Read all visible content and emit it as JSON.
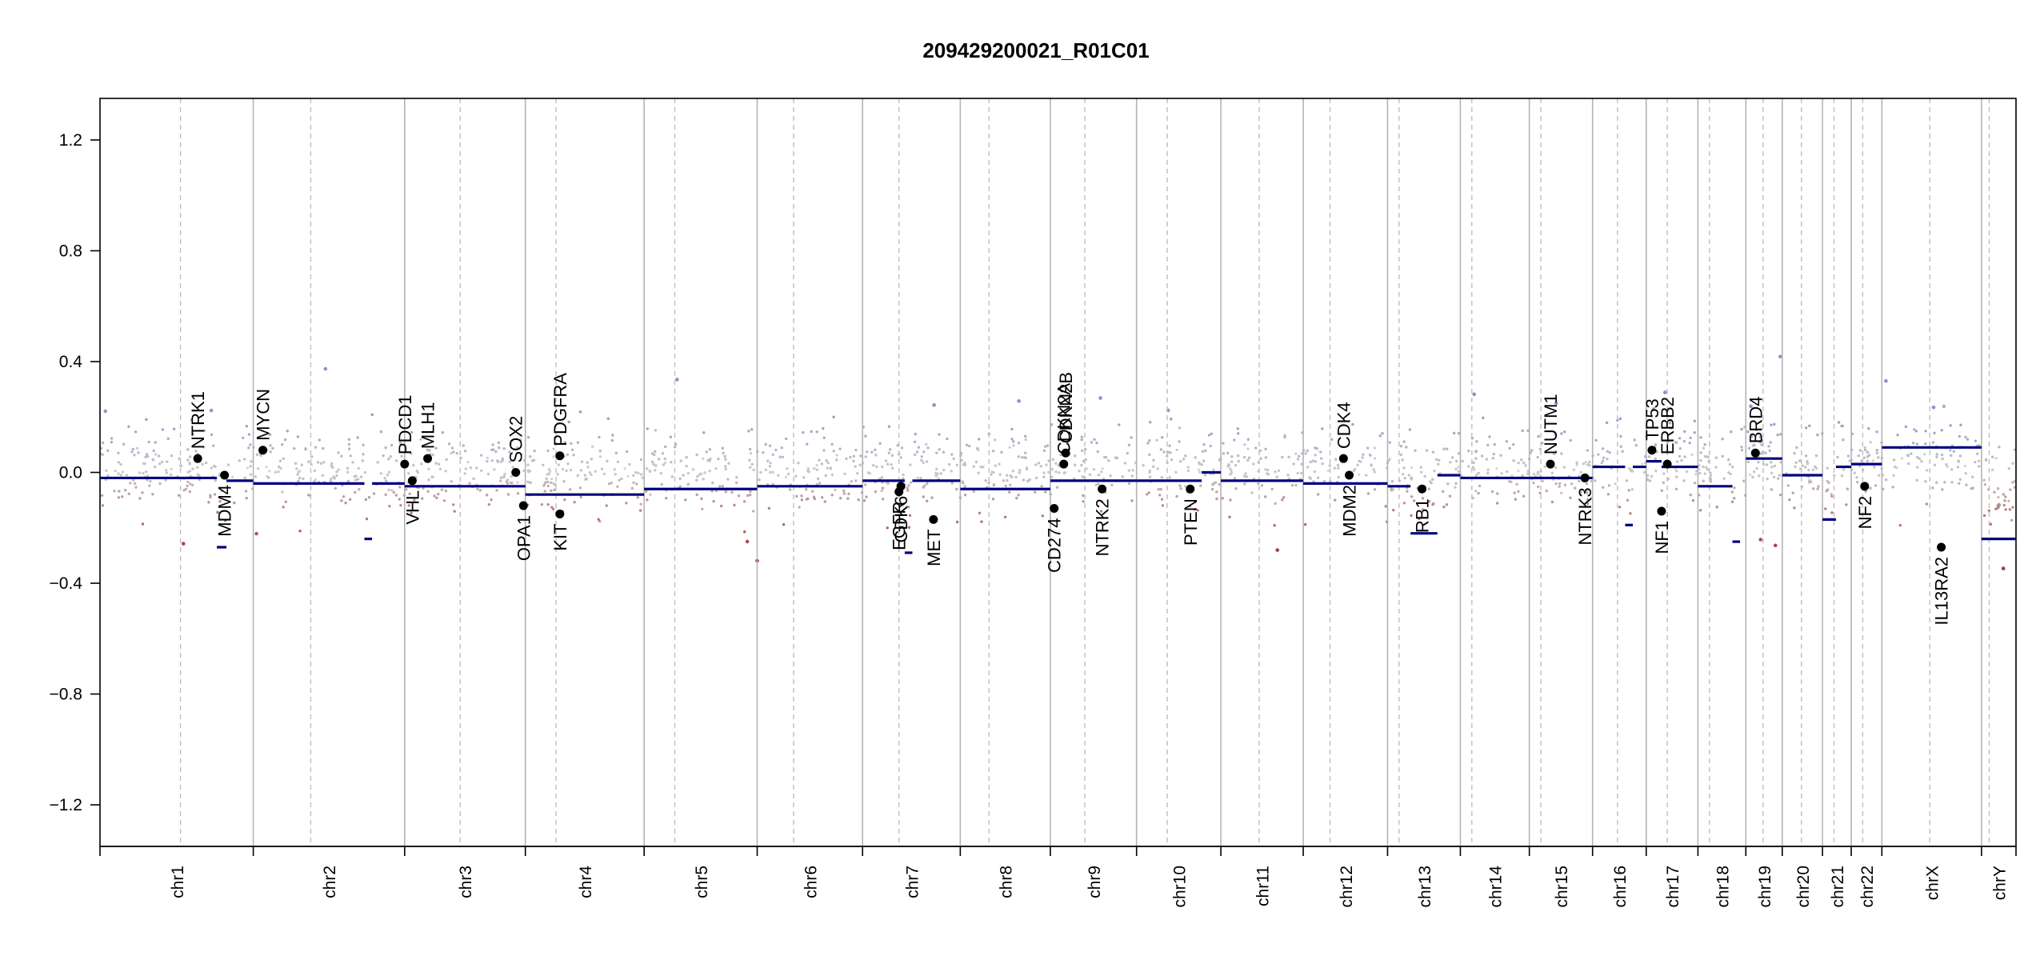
{
  "chart_data": {
    "type": "scatter",
    "title": "209429200021_R01C01",
    "xlabel": "",
    "ylabel": "",
    "ylim": [
      -1.35,
      1.35
    ],
    "yticks": [
      -1.2,
      -0.8,
      -0.4,
      0.0,
      0.4,
      0.8,
      1.2
    ],
    "ytick_labels": [
      "−1.2",
      "−0.8",
      "−0.4",
      "0.0",
      "0.4",
      "0.8",
      "1.2"
    ],
    "grid": false,
    "x_unit": "genome position (relative scale 0–1)",
    "chromosomes": [
      {
        "name": "chr1",
        "start": 0.0,
        "end": 0.08,
        "cen": 0.042
      },
      {
        "name": "chr2",
        "start": 0.08,
        "end": 0.159,
        "cen": 0.11
      },
      {
        "name": "chr3",
        "start": 0.159,
        "end": 0.222,
        "cen": 0.188
      },
      {
        "name": "chr4",
        "start": 0.222,
        "end": 0.284,
        "cen": 0.238
      },
      {
        "name": "chr5",
        "start": 0.284,
        "end": 0.343,
        "cen": 0.3
      },
      {
        "name": "chr6",
        "start": 0.343,
        "end": 0.398,
        "cen": 0.362
      },
      {
        "name": "chr7",
        "start": 0.398,
        "end": 0.449,
        "cen": 0.417
      },
      {
        "name": "chr8",
        "start": 0.449,
        "end": 0.496,
        "cen": 0.464
      },
      {
        "name": "chr9",
        "start": 0.496,
        "end": 0.541,
        "cen": 0.514
      },
      {
        "name": "chr10",
        "start": 0.541,
        "end": 0.585,
        "cen": 0.557
      },
      {
        "name": "chr11",
        "start": 0.585,
        "end": 0.628,
        "cen": 0.605
      },
      {
        "name": "chr12",
        "start": 0.628,
        "end": 0.672,
        "cen": 0.642
      },
      {
        "name": "chr13",
        "start": 0.672,
        "end": 0.71,
        "cen": 0.678
      },
      {
        "name": "chr14",
        "start": 0.71,
        "end": 0.746,
        "cen": 0.716
      },
      {
        "name": "chr15",
        "start": 0.746,
        "end": 0.779,
        "cen": 0.752
      },
      {
        "name": "chr16",
        "start": 0.779,
        "end": 0.807,
        "cen": 0.792
      },
      {
        "name": "chr17",
        "start": 0.807,
        "end": 0.834,
        "cen": 0.818
      },
      {
        "name": "chr18",
        "start": 0.834,
        "end": 0.859,
        "cen": 0.84
      },
      {
        "name": "chr19",
        "start": 0.859,
        "end": 0.878,
        "cen": 0.868
      },
      {
        "name": "chr20",
        "start": 0.878,
        "end": 0.899,
        "cen": 0.888
      },
      {
        "name": "chr21",
        "start": 0.899,
        "end": 0.914,
        "cen": 0.905
      },
      {
        "name": "chr22",
        "start": 0.914,
        "end": 0.93,
        "cen": 0.92
      },
      {
        "name": "chrX",
        "start": 0.93,
        "end": 0.982,
        "cen": 0.955
      },
      {
        "name": "chrY",
        "start": 0.982,
        "end": 1.0,
        "cen": 0.986
      }
    ],
    "segments": [
      {
        "x0": 0.0,
        "x1": 0.061,
        "y": -0.02
      },
      {
        "x0": 0.061,
        "x1": 0.066,
        "y": -0.27
      },
      {
        "x0": 0.066,
        "x1": 0.08,
        "y": -0.03
      },
      {
        "x0": 0.08,
        "x1": 0.138,
        "y": -0.04
      },
      {
        "x0": 0.138,
        "x1": 0.142,
        "y": -0.24
      },
      {
        "x0": 0.142,
        "x1": 0.159,
        "y": -0.04
      },
      {
        "x0": 0.159,
        "x1": 0.222,
        "y": -0.05
      },
      {
        "x0": 0.222,
        "x1": 0.284,
        "y": -0.08
      },
      {
        "x0": 0.284,
        "x1": 0.343,
        "y": -0.06
      },
      {
        "x0": 0.343,
        "x1": 0.398,
        "y": -0.05
      },
      {
        "x0": 0.398,
        "x1": 0.42,
        "y": -0.03
      },
      {
        "x0": 0.42,
        "x1": 0.424,
        "y": -0.29
      },
      {
        "x0": 0.424,
        "x1": 0.449,
        "y": -0.03
      },
      {
        "x0": 0.449,
        "x1": 0.496,
        "y": -0.06
      },
      {
        "x0": 0.496,
        "x1": 0.541,
        "y": -0.03
      },
      {
        "x0": 0.541,
        "x1": 0.575,
        "y": -0.03
      },
      {
        "x0": 0.575,
        "x1": 0.585,
        "y": 0.0
      },
      {
        "x0": 0.585,
        "x1": 0.628,
        "y": -0.03
      },
      {
        "x0": 0.628,
        "x1": 0.672,
        "y": -0.04
      },
      {
        "x0": 0.672,
        "x1": 0.684,
        "y": -0.05
      },
      {
        "x0": 0.684,
        "x1": 0.698,
        "y": -0.22
      },
      {
        "x0": 0.698,
        "x1": 0.71,
        "y": -0.01
      },
      {
        "x0": 0.71,
        "x1": 0.746,
        "y": -0.02
      },
      {
        "x0": 0.746,
        "x1": 0.779,
        "y": -0.02
      },
      {
        "x0": 0.779,
        "x1": 0.796,
        "y": 0.02
      },
      {
        "x0": 0.796,
        "x1": 0.8,
        "y": -0.19
      },
      {
        "x0": 0.8,
        "x1": 0.807,
        "y": 0.02
      },
      {
        "x0": 0.807,
        "x1": 0.815,
        "y": 0.04
      },
      {
        "x0": 0.815,
        "x1": 0.834,
        "y": 0.02
      },
      {
        "x0": 0.834,
        "x1": 0.852,
        "y": -0.05
      },
      {
        "x0": 0.852,
        "x1": 0.856,
        "y": -0.25
      },
      {
        "x0": 0.859,
        "x1": 0.878,
        "y": 0.05
      },
      {
        "x0": 0.878,
        "x1": 0.899,
        "y": -0.01
      },
      {
        "x0": 0.899,
        "x1": 0.906,
        "y": -0.17
      },
      {
        "x0": 0.906,
        "x1": 0.914,
        "y": 0.02
      },
      {
        "x0": 0.914,
        "x1": 0.93,
        "y": 0.03
      },
      {
        "x0": 0.93,
        "x1": 0.982,
        "y": 0.09
      },
      {
        "x0": 0.982,
        "x1": 1.0,
        "y": -0.24
      }
    ],
    "genes": [
      {
        "name": "NTRK1",
        "x": 0.051,
        "y": 0.05,
        "side": "up"
      },
      {
        "name": "MDM4",
        "x": 0.065,
        "y": -0.01,
        "side": "down"
      },
      {
        "name": "MYCN",
        "x": 0.085,
        "y": 0.08,
        "side": "up"
      },
      {
        "name": "PDCD1",
        "x": 0.159,
        "y": 0.03,
        "side": "up"
      },
      {
        "name": "VHL",
        "x": 0.163,
        "y": -0.03,
        "side": "down"
      },
      {
        "name": "MLH1",
        "x": 0.171,
        "y": 0.05,
        "side": "up"
      },
      {
        "name": "SOX2",
        "x": 0.217,
        "y": 0.0,
        "side": "up"
      },
      {
        "name": "OPA1",
        "x": 0.221,
        "y": -0.12,
        "side": "down"
      },
      {
        "name": "PDGFRA",
        "x": 0.24,
        "y": 0.06,
        "side": "up"
      },
      {
        "name": "KIT",
        "x": 0.24,
        "y": -0.15,
        "side": "down"
      },
      {
        "name": "EGFR",
        "x": 0.417,
        "y": -0.07,
        "side": "down"
      },
      {
        "name": "CDK6",
        "x": 0.418,
        "y": -0.05,
        "side": "down"
      },
      {
        "name": "MET",
        "x": 0.435,
        "y": -0.17,
        "side": "down"
      },
      {
        "name": "CD274",
        "x": 0.498,
        "y": -0.13,
        "side": "down"
      },
      {
        "name": "CDKN2A",
        "x": 0.503,
        "y": 0.03,
        "side": "up"
      },
      {
        "name": "CDKN2B",
        "x": 0.504,
        "y": 0.07,
        "side": "up"
      },
      {
        "name": "NTRK2",
        "x": 0.523,
        "y": -0.06,
        "side": "down"
      },
      {
        "name": "PTEN",
        "x": 0.569,
        "y": -0.06,
        "side": "down"
      },
      {
        "name": "CDK4",
        "x": 0.649,
        "y": 0.05,
        "side": "up"
      },
      {
        "name": "MDM2",
        "x": 0.652,
        "y": -0.01,
        "side": "down"
      },
      {
        "name": "RB1",
        "x": 0.69,
        "y": -0.06,
        "side": "down"
      },
      {
        "name": "NUTM1",
        "x": 0.757,
        "y": 0.03,
        "side": "up"
      },
      {
        "name": "NTRK3",
        "x": 0.775,
        "y": -0.02,
        "side": "down"
      },
      {
        "name": "TP53",
        "x": 0.81,
        "y": 0.08,
        "side": "up"
      },
      {
        "name": "ERBB2",
        "x": 0.818,
        "y": 0.03,
        "side": "up"
      },
      {
        "name": "NF1",
        "x": 0.815,
        "y": -0.14,
        "side": "down"
      },
      {
        "name": "BRD4",
        "x": 0.864,
        "y": 0.07,
        "side": "up"
      },
      {
        "name": "NF2",
        "x": 0.921,
        "y": -0.05,
        "side": "down"
      },
      {
        "name": "IL13RA2",
        "x": 0.961,
        "y": -0.27,
        "side": "down"
      }
    ],
    "colors": {
      "segment": "#00007f",
      "positive": "#8c8cc8",
      "neutral": "#c8c8c8",
      "negative": "#a0302f",
      "gene_point": "#000000",
      "chrom_boundary": "#b4b4b4",
      "centromere": "#bebebe"
    }
  }
}
